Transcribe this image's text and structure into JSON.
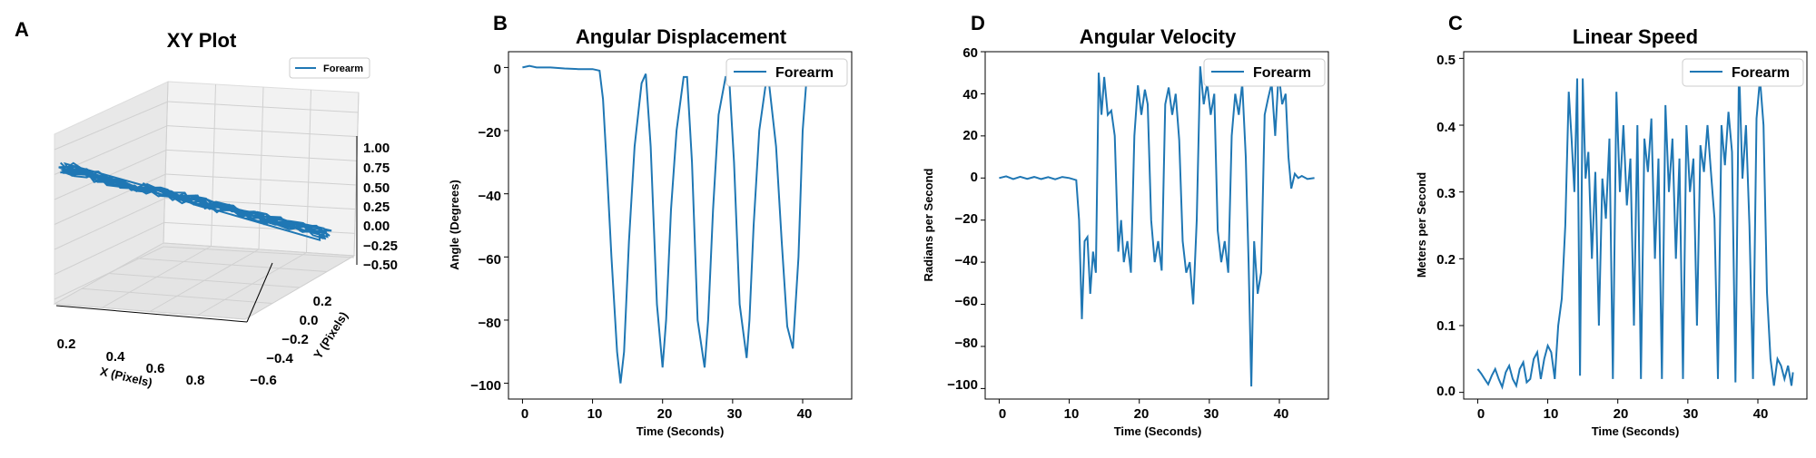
{
  "panels": {
    "a": {
      "letter": "A",
      "title": "XY Plot",
      "xlabel": "X (Pixels)",
      "ylabel": "Y (Pixels)",
      "legend": "Forearm",
      "xticks": [
        "0.2",
        "0.4",
        "0.6",
        "0.8"
      ],
      "yticks": [
        "0.2",
        "0.0",
        "−0.2",
        "−0.4",
        "−0.6"
      ],
      "zticks": [
        "1.00",
        "0.75",
        "0.50",
        "0.25",
        "0.00",
        "−0.25",
        "−0.50"
      ]
    },
    "b": {
      "letter": "B",
      "title": "Angular Displacement",
      "xlabel": "Time (Seconds)",
      "ylabel": "Angle (Degrees)",
      "legend": "Forearm",
      "xticks": [
        "0",
        "10",
        "20",
        "30",
        "40"
      ],
      "yticks": [
        "0",
        "−20",
        "−40",
        "−60",
        "−80",
        "−100"
      ]
    },
    "d": {
      "letter": "D",
      "title": "Angular Velocity",
      "xlabel": "Time (Seconds)",
      "ylabel": "Radians per Second",
      "legend": "Forearm",
      "xticks": [
        "0",
        "10",
        "20",
        "30",
        "40"
      ],
      "yticks": [
        "60",
        "40",
        "20",
        "0",
        "−20",
        "−40",
        "−60",
        "−80",
        "−100"
      ]
    },
    "c": {
      "letter": "C",
      "title": "Linear Speed",
      "xlabel": "Time (Seconds)",
      "ylabel": "Meters per Second",
      "legend": "Forearm",
      "xticks": [
        "0",
        "10",
        "20",
        "30",
        "40"
      ],
      "yticks": [
        "0.5",
        "0.4",
        "0.3",
        "0.2",
        "0.1",
        "0.0"
      ]
    }
  },
  "chart_data": [
    {
      "type": "scatter",
      "title": "XY Plot",
      "xlabel": "X (Pixels)",
      "ylabel": "Y (Pixels)",
      "projection": "3d",
      "xlim": [
        0.1,
        0.95
      ],
      "ylim": [
        -0.65,
        0.3
      ],
      "zlim": [
        -0.5,
        1.0
      ],
      "series": [
        {
          "name": "Forearm",
          "color": "#1f77b4",
          "x": [
            0.12,
            0.3,
            0.5,
            0.7,
            0.88,
            0.7,
            0.5,
            0.3,
            0.12
          ],
          "y": [
            0.25,
            0.1,
            -0.1,
            -0.3,
            -0.5,
            -0.3,
            -0.1,
            0.1,
            0.25
          ],
          "z": [
            0.0,
            0.0,
            0.0,
            0.0,
            0.0,
            0.0,
            0.0,
            0.0,
            0.0
          ]
        }
      ],
      "legend_position": "top-right"
    },
    {
      "type": "line",
      "title": "Angular Displacement",
      "xlabel": "Time (Seconds)",
      "ylabel": "Angle (Degrees)",
      "xlim": [
        -2,
        47
      ],
      "ylim": [
        -105,
        5
      ],
      "series": [
        {
          "name": "Forearm",
          "color": "#1f77b4",
          "x": [
            0,
            1,
            2,
            4,
            6,
            8,
            10,
            11,
            11.5,
            12,
            12.7,
            13.5,
            14.0,
            14.5,
            15.2,
            16.0,
            17.0,
            17.6,
            18.3,
            19.2,
            20.0,
            20.5,
            21.2,
            22.0,
            23.0,
            23.5,
            24.2,
            25.0,
            26.0,
            26.5,
            27.2,
            28.0,
            29.0,
            29.5,
            30.2,
            31.0,
            32.0,
            32.4,
            33.0,
            33.8,
            35.0,
            36.2,
            37.0,
            37.8,
            38.6,
            39.4,
            40.0,
            40.5,
            41.0,
            42.0,
            43.0,
            44.0,
            45.0
          ],
          "values": [
            0,
            0.5,
            0,
            0,
            -0.3,
            -0.5,
            -0.5,
            -1,
            -10,
            -30,
            -60,
            -90,
            -100,
            -90,
            -55,
            -25,
            -5,
            -2,
            -25,
            -75,
            -95,
            -80,
            -45,
            -20,
            -3,
            -3,
            -30,
            -80,
            -95,
            -80,
            -45,
            -15,
            -3,
            -3,
            -30,
            -75,
            -92,
            -80,
            -50,
            -20,
            -1,
            -25,
            -55,
            -82,
            -89,
            -60,
            -20,
            -5,
            -4,
            -3,
            -3,
            -3,
            -3
          ]
        }
      ],
      "legend_position": "top-right"
    },
    {
      "type": "line",
      "title": "Angular Velocity",
      "xlabel": "Time (Seconds)",
      "ylabel": "Radians per Second",
      "xlim": [
        -2,
        47
      ],
      "ylim": [
        -105,
        60
      ],
      "series": [
        {
          "name": "Forearm",
          "color": "#1f77b4",
          "x": [
            0,
            1,
            2,
            3,
            4,
            5,
            6,
            7,
            8,
            9,
            10,
            11,
            11.4,
            11.8,
            12.2,
            12.6,
            13.0,
            13.4,
            13.8,
            14.2,
            14.6,
            15.0,
            15.5,
            16.0,
            16.5,
            17.0,
            17.4,
            17.8,
            18.3,
            18.8,
            19.3,
            19.8,
            20.3,
            20.8,
            21.2,
            21.7,
            22.2,
            22.7,
            23.2,
            23.7,
            24.2,
            24.7,
            25.2,
            25.7,
            26.2,
            26.7,
            27.2,
            27.7,
            28.2,
            28.7,
            29.2,
            29.7,
            30.2,
            30.7,
            31.2,
            31.7,
            32.2,
            32.7,
            33.2,
            33.7,
            34.2,
            34.7,
            35.2,
            35.6,
            36.0,
            36.4,
            36.9,
            37.4,
            37.9,
            38.4,
            38.9,
            39.4,
            39.9,
            40.4,
            40.9,
            41.3,
            41.7,
            42.2,
            42.7,
            43.2,
            44.0,
            45.0
          ],
          "values": [
            0,
            0.8,
            -0.5,
            0.6,
            -0.4,
            0.5,
            -0.5,
            0.4,
            -0.6,
            0.5,
            0,
            -1,
            -20,
            -67,
            -30,
            -28,
            -55,
            -35,
            -45,
            50,
            30,
            48,
            30,
            32,
            20,
            -35,
            -20,
            -40,
            -30,
            -45,
            20,
            44,
            30,
            42,
            35,
            -20,
            -40,
            -30,
            -44,
            35,
            43,
            30,
            40,
            18,
            -30,
            -45,
            -40,
            -60,
            -20,
            53,
            35,
            45,
            30,
            40,
            -25,
            -40,
            -30,
            -45,
            20,
            40,
            30,
            45,
            10,
            -40,
            -99,
            -30,
            -55,
            -45,
            30,
            38,
            45,
            20,
            50,
            35,
            40,
            10,
            -5,
            2,
            0,
            1,
            -0.5,
            0
          ]
        }
      ],
      "legend_position": "top-right"
    },
    {
      "type": "line",
      "title": "Linear Speed",
      "xlabel": "Time (Seconds)",
      "ylabel": "Meters per Second",
      "xlim": [
        -2,
        47
      ],
      "ylim": [
        -0.01,
        0.51
      ],
      "series": [
        {
          "name": "Forearm",
          "color": "#1f77b4",
          "x": [
            0,
            0.5,
            1,
            1.5,
            2,
            2.5,
            3,
            3.5,
            4,
            4.5,
            5,
            5.5,
            6,
            6.5,
            7,
            7.5,
            8,
            8.5,
            9,
            9.5,
            10,
            10.5,
            11,
            11.5,
            12,
            12.5,
            13,
            13.4,
            13.8,
            14.2,
            14.6,
            15.0,
            15.4,
            15.8,
            16.3,
            16.8,
            17.3,
            17.8,
            18.3,
            18.8,
            19.3,
            19.8,
            20.3,
            20.8,
            21.3,
            21.8,
            22.3,
            22.8,
            23.3,
            23.8,
            24.3,
            24.8,
            25.3,
            25.8,
            26.3,
            26.8,
            27.3,
            27.8,
            28.3,
            28.8,
            29.3,
            29.8,
            30.3,
            30.8,
            31.3,
            31.8,
            32.3,
            32.8,
            33.3,
            33.8,
            34.3,
            34.8,
            35.3,
            35.8,
            36.3,
            36.8,
            37.3,
            37.8,
            38.3,
            38.8,
            39.3,
            39.8,
            40.3,
            40.8,
            41.3,
            41.8,
            42.3,
            42.8,
            43.3,
            43.8,
            44.3,
            44.8,
            45.0
          ],
          "values": [
            0.035,
            0.028,
            0.02,
            0.012,
            0.025,
            0.035,
            0.02,
            0.008,
            0.03,
            0.04,
            0.02,
            0.01,
            0.035,
            0.045,
            0.015,
            0.02,
            0.05,
            0.06,
            0.02,
            0.05,
            0.07,
            0.06,
            0.02,
            0.1,
            0.14,
            0.25,
            0.45,
            0.38,
            0.3,
            0.47,
            0.025,
            0.47,
            0.32,
            0.36,
            0.2,
            0.33,
            0.1,
            0.32,
            0.26,
            0.38,
            0.02,
            0.45,
            0.3,
            0.4,
            0.28,
            0.35,
            0.1,
            0.4,
            0.02,
            0.38,
            0.33,
            0.41,
            0.2,
            0.35,
            0.02,
            0.43,
            0.3,
            0.38,
            0.2,
            0.35,
            0.02,
            0.4,
            0.3,
            0.35,
            0.1,
            0.37,
            0.33,
            0.4,
            0.33,
            0.26,
            0.02,
            0.4,
            0.34,
            0.42,
            0.36,
            0.015,
            0.49,
            0.32,
            0.4,
            0.25,
            0.02,
            0.41,
            0.47,
            0.4,
            0.15,
            0.05,
            0.01,
            0.05,
            0.04,
            0.02,
            0.04,
            0.01,
            0.03
          ]
        }
      ],
      "legend_position": "top-right"
    }
  ]
}
